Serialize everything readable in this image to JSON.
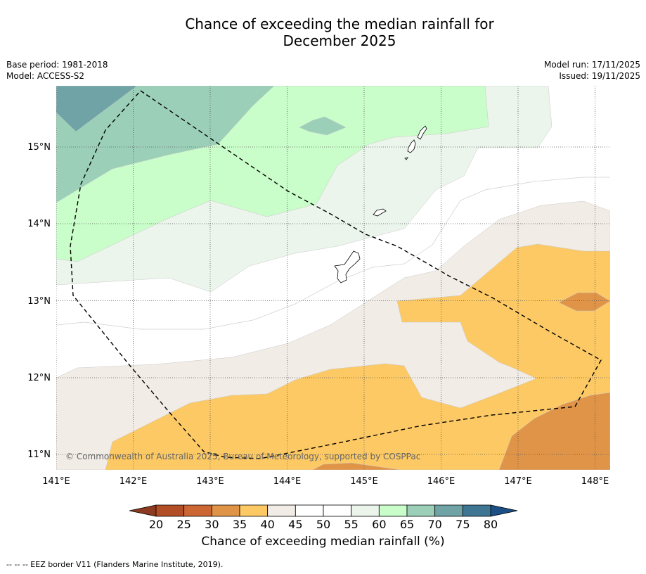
{
  "title_line1": "Chance of exceeding the median rainfall for",
  "title_line2": "December 2025",
  "base_period": "Base period: 1981-2018",
  "model": "Model: ACCESS-S2",
  "model_run": "Model run: 17/11/2025",
  "issued": "Issued: 19/11/2025",
  "credit": "© Commonwealth of Australia 2025, Bureau of Meteorology, supported by COSPPac",
  "footnote": "-- -- -- EEZ border V11 (Flanders Marine Institute, 2019).",
  "lon_labels": [
    "141°E",
    "142°E",
    "143°E",
    "144°E",
    "145°E",
    "146°E",
    "147°E",
    "148°E"
  ],
  "lat_labels": [
    "15°N",
    "14°N",
    "13°N",
    "12°N",
    "11°N"
  ],
  "colorbar": {
    "title": "Chance of exceeding median rainfall (%)",
    "ticks": [
      "20",
      "25",
      "30",
      "35",
      "40",
      "45",
      "50",
      "55",
      "60",
      "65",
      "70",
      "75",
      "80"
    ],
    "colors": [
      "#b24e26",
      "#cc6633",
      "#e09448",
      "#fdc964",
      "#f1ece6",
      "#ffffff",
      "#ffffff",
      "#ebf5eb",
      "#c9fdc9",
      "#9bcfb8",
      "#6fa3a6",
      "#3e7694"
    ],
    "under_color": "#8c3a20",
    "over_color": "#1b4f85"
  }
}
